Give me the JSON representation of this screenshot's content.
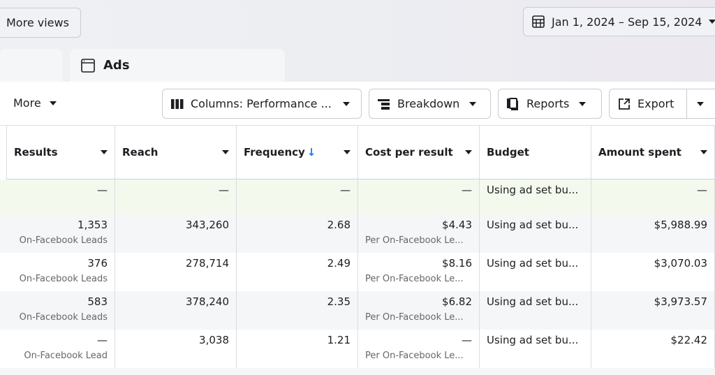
{
  "top": {
    "more_views": "More views",
    "date_range": "Jan 1, 2024 – Sep 15, 2024",
    "active_tab": "Ads"
  },
  "toolbar": {
    "more": "More",
    "columns": "Columns: Performance ...",
    "breakdown": "Breakdown",
    "reports": "Reports",
    "export": "Export"
  },
  "table": {
    "headers": [
      "Results",
      "Reach",
      "Frequency",
      "Cost per result",
      "Budget",
      "Amount spent"
    ],
    "sort_arrow": "↓",
    "rows": [
      {
        "results": "—",
        "results_sub": "",
        "reach": "—",
        "frequency": "—",
        "cpr": "—",
        "cpr_sub": "",
        "budget": "Using ad set bu...",
        "spent": "—"
      },
      {
        "results": "1,353",
        "results_sub": "On-Facebook Leads",
        "reach": "343,260",
        "frequency": "2.68",
        "cpr": "$4.43",
        "cpr_sub": "Per On-Facebook Le...",
        "budget": "Using ad set bu...",
        "spent": "$5,988.99"
      },
      {
        "results": "376",
        "results_sub": "On-Facebook Leads",
        "reach": "278,714",
        "frequency": "2.49",
        "cpr": "$8.16",
        "cpr_sub": "Per On-Facebook Le...",
        "budget": "Using ad set bu...",
        "spent": "$3,070.03"
      },
      {
        "results": "583",
        "results_sub": "On-Facebook Leads",
        "reach": "378,240",
        "frequency": "2.35",
        "cpr": "$6.82",
        "cpr_sub": "Per On-Facebook Le...",
        "budget": "Using ad set bu...",
        "spent": "$3,973.57"
      },
      {
        "results": "—",
        "results_sub": "On-Facebook Lead",
        "reach": "3,038",
        "frequency": "1.21",
        "cpr": "—",
        "cpr_sub": "Per On-Facebook Le...",
        "budget": "Using ad set bu...",
        "spent": "$22.42"
      }
    ]
  },
  "colors": {
    "sort_accent": "#1877f2",
    "highlight_row": "#f4f9ee",
    "alt_row": "#f5f6f7"
  }
}
